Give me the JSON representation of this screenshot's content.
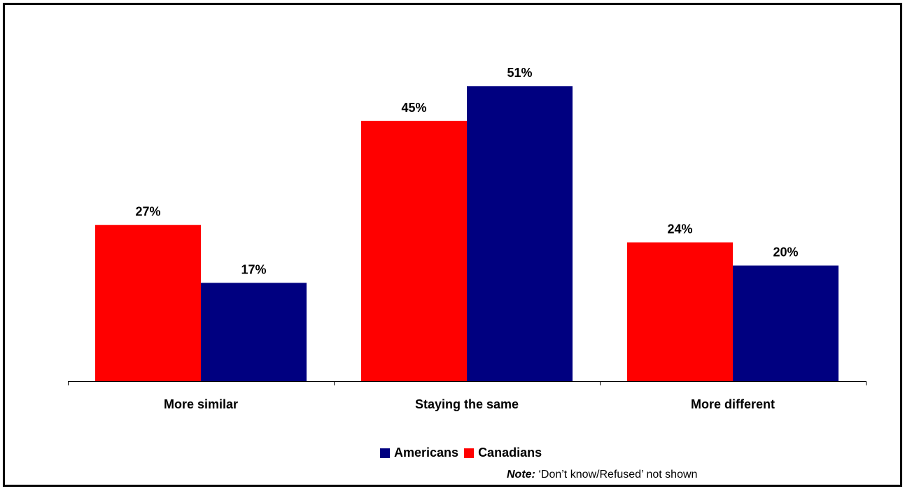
{
  "chart_data": {
    "type": "bar",
    "categories": [
      "More similar",
      "Staying the same",
      "More different"
    ],
    "series": [
      {
        "name": "Canadians",
        "color": "#FF0000",
        "values": [
          27,
          45,
          24
        ],
        "labels": [
          "27%",
          "45%",
          "24%"
        ]
      },
      {
        "name": "Americans",
        "color": "#000080",
        "values": [
          17,
          51,
          20
        ],
        "labels": [
          "17%",
          "51%",
          "20%"
        ]
      }
    ],
    "ylim": [
      0,
      60
    ],
    "grid": false,
    "legend_position": "bottom",
    "legend_order": [
      "Americans",
      "Canadians"
    ]
  },
  "legend": {
    "americans_label": "Americans",
    "canadians_label": "Canadians",
    "americans_color": "#000080",
    "canadians_color": "#FF0000"
  },
  "note": {
    "label": "Note:",
    "text": " ‘Don’t know/Refused’ not shown"
  }
}
